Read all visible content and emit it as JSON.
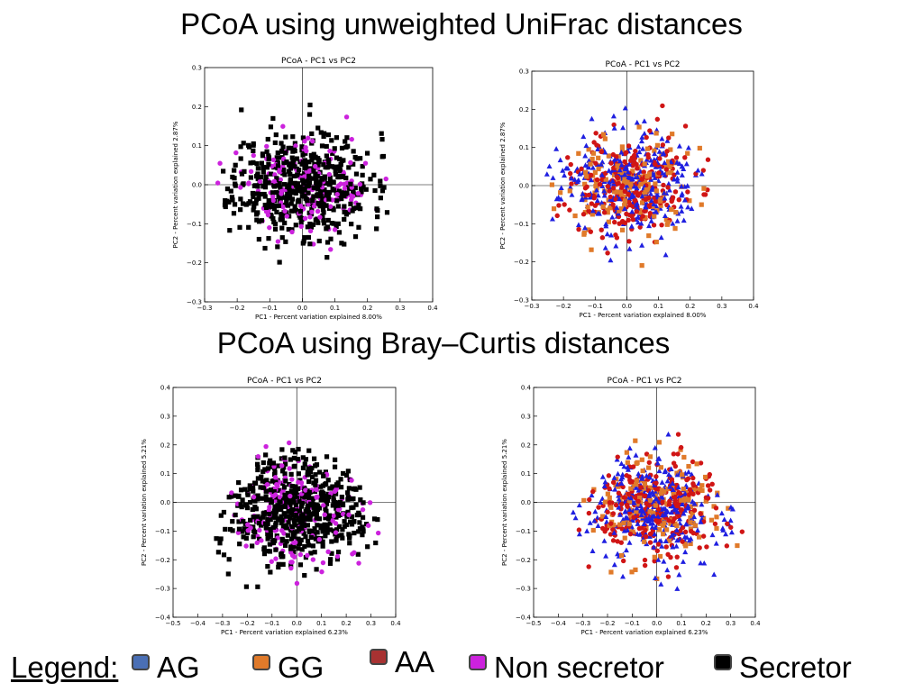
{
  "headings": {
    "top": "PCoA using unweighted UniFrac distances",
    "middle": "PCoA using Bray–Curtis distances"
  },
  "legend": {
    "title": "Legend:",
    "items": [
      {
        "label": "AG",
        "color": "#4a6fb5"
      },
      {
        "label": "GG",
        "color": "#e07a2a"
      },
      {
        "label": "AA",
        "color": "#a83232"
      },
      {
        "label": "Non secretor",
        "color": "#cc22dd"
      },
      {
        "label": "Secretor",
        "color": "#000000"
      }
    ]
  },
  "chart_data": [
    {
      "type": "scatter",
      "title": "PCoA - PC1 vs PC2",
      "xlabel": "PC1 - Percent variation explained 8.00%",
      "ylabel": "PC2 - Percent variation explained 2.87%",
      "xlim": [
        -0.3,
        0.4
      ],
      "ylim": [
        -0.3,
        0.3
      ],
      "xticks": [
        "−0.3",
        "−0.2",
        "−0.1",
        "0.0",
        "0.1",
        "0.2",
        "0.3",
        "0.4"
      ],
      "yticks": [
        "−0.3",
        "−0.2",
        "−0.1",
        "0.0",
        "0.1",
        "0.2",
        "0.3"
      ],
      "coloring": "secretor",
      "cloud": {
        "seed": 11,
        "n": 700,
        "cx": 0.0,
        "cy": 0.0,
        "rx": 0.25,
        "ry": 0.12
      },
      "series": [
        {
          "name": "Secretor",
          "color": "#000000",
          "marker": "square",
          "share": 0.78
        },
        {
          "name": "Non secretor",
          "color": "#cc22dd",
          "marker": "circle",
          "share": 0.22
        }
      ]
    },
    {
      "type": "scatter",
      "title": "PCoA - PC1 vs PC2",
      "xlabel": "PC1 - Percent variation explained 8.00%",
      "ylabel": "PC2 - Percent variation explained 2.87%",
      "xlim": [
        -0.3,
        0.4
      ],
      "ylim": [
        -0.3,
        0.3
      ],
      "xticks": [
        "−0.3",
        "−0.2",
        "−0.1",
        "0.0",
        "0.1",
        "0.2",
        "0.3",
        "0.4"
      ],
      "yticks": [
        "−0.3",
        "−0.2",
        "−0.1",
        "0.0",
        "0.1",
        "0.2",
        "0.3"
      ],
      "coloring": "genotype",
      "cloud": {
        "seed": 23,
        "n": 700,
        "cx": 0.0,
        "cy": 0.0,
        "rx": 0.25,
        "ry": 0.12
      },
      "series": [
        {
          "name": "AG",
          "color": "#1f1fe0",
          "marker": "triangle",
          "share": 0.45
        },
        {
          "name": "AA",
          "color": "#d01515",
          "marker": "circle",
          "share": 0.35
        },
        {
          "name": "GG",
          "color": "#e07a2a",
          "marker": "square",
          "share": 0.2
        }
      ]
    },
    {
      "type": "scatter",
      "title": "PCoA - PC1 vs PC2",
      "xlabel": "PC1 - Percent variation explained 6.23%",
      "ylabel": "PC2 - Percent variation explained 5.21%",
      "xlim": [
        -0.5,
        0.4
      ],
      "ylim": [
        -0.4,
        0.4
      ],
      "xticks": [
        "−0.5",
        "−0.4",
        "−0.3",
        "−0.2",
        "−0.1",
        "0.0",
        "0.1",
        "0.2",
        "0.3",
        "0.4"
      ],
      "yticks": [
        "−0.4",
        "−0.3",
        "−0.2",
        "−0.1",
        "0.0",
        "0.1",
        "0.2",
        "0.3",
        "0.4"
      ],
      "coloring": "secretor",
      "cloud": {
        "seed": 37,
        "n": 750,
        "cx": 0.0,
        "cy": -0.02,
        "rx": 0.34,
        "ry": 0.17,
        "triangle": true
      },
      "series": [
        {
          "name": "Secretor",
          "color": "#000000",
          "marker": "square",
          "share": 0.78
        },
        {
          "name": "Non secretor",
          "color": "#cc22dd",
          "marker": "circle",
          "share": 0.22
        }
      ]
    },
    {
      "type": "scatter",
      "title": "PCoA - PC1 vs PC2",
      "xlabel": "PC1 - Percent variation explained 6.23%",
      "ylabel": "PC2 - Percent variation explained 5.21%",
      "xlim": [
        -0.5,
        0.4
      ],
      "ylim": [
        -0.4,
        0.4
      ],
      "xticks": [
        "−0.5",
        "−0.4",
        "−0.3",
        "−0.2",
        "−0.1",
        "0.0",
        "0.1",
        "0.2",
        "0.3",
        "0.4"
      ],
      "yticks": [
        "−0.4",
        "−0.3",
        "−0.2",
        "−0.1",
        "0.0",
        "0.1",
        "0.2",
        "0.3",
        "0.4"
      ],
      "coloring": "genotype",
      "cloud": {
        "seed": 53,
        "n": 750,
        "cx": 0.0,
        "cy": -0.02,
        "rx": 0.34,
        "ry": 0.17,
        "triangle": true
      },
      "series": [
        {
          "name": "AG",
          "color": "#1f1fe0",
          "marker": "triangle",
          "share": 0.45
        },
        {
          "name": "AA",
          "color": "#d01515",
          "marker": "circle",
          "share": 0.35
        },
        {
          "name": "GG",
          "color": "#e07a2a",
          "marker": "square",
          "share": 0.2
        }
      ]
    }
  ]
}
